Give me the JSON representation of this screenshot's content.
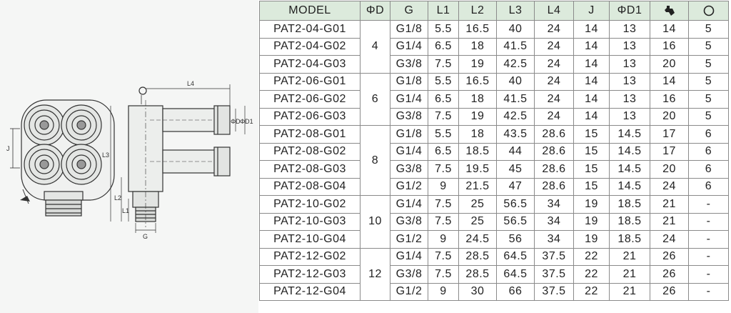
{
  "headers": {
    "model": "MODEL",
    "od": "ΦD",
    "g": "G",
    "l1": "L1",
    "l2": "L2",
    "l3": "L3",
    "l4": "L4",
    "j": "J",
    "od1": "ΦD1",
    "wrench_icon": "wrench-icon",
    "circle_icon": "circle-icon"
  },
  "groups": [
    {
      "od": "4",
      "rows": [
        {
          "model": "PAT2-04-G01",
          "g": "G1/8",
          "l1": "5.5",
          "l2": "16.5",
          "l3": "40",
          "l4": "24",
          "j": "14",
          "od1": "13",
          "wrench": "14",
          "circle": "5"
        },
        {
          "model": "PAT2-04-G02",
          "g": "G1/4",
          "l1": "6.5",
          "l2": "18",
          "l3": "41.5",
          "l4": "24",
          "j": "14",
          "od1": "13",
          "wrench": "16",
          "circle": "5"
        },
        {
          "model": "PAT2-04-G03",
          "g": "G3/8",
          "l1": "7.5",
          "l2": "19",
          "l3": "42.5",
          "l4": "24",
          "j": "14",
          "od1": "13",
          "wrench": "20",
          "circle": "5"
        }
      ]
    },
    {
      "od": "6",
      "rows": [
        {
          "model": "PAT2-06-G01",
          "g": "G1/8",
          "l1": "5.5",
          "l2": "16.5",
          "l3": "40",
          "l4": "24",
          "j": "14",
          "od1": "13",
          "wrench": "14",
          "circle": "5"
        },
        {
          "model": "PAT2-06-G02",
          "g": "G1/4",
          "l1": "6.5",
          "l2": "18",
          "l3": "41.5",
          "l4": "24",
          "j": "14",
          "od1": "13",
          "wrench": "16",
          "circle": "5"
        },
        {
          "model": "PAT2-06-G03",
          "g": "G3/8",
          "l1": "7.5",
          "l2": "19",
          "l3": "42.5",
          "l4": "24",
          "j": "14",
          "od1": "13",
          "wrench": "20",
          "circle": "5"
        }
      ]
    },
    {
      "od": "8",
      "rows": [
        {
          "model": "PAT2-08-G01",
          "g": "G1/8",
          "l1": "5.5",
          "l2": "18",
          "l3": "43.5",
          "l4": "28.6",
          "j": "15",
          "od1": "14.5",
          "wrench": "17",
          "circle": "6"
        },
        {
          "model": "PAT2-08-G02",
          "g": "G1/4",
          "l1": "6.5",
          "l2": "18.5",
          "l3": "44",
          "l4": "28.6",
          "j": "15",
          "od1": "14.5",
          "wrench": "17",
          "circle": "6"
        },
        {
          "model": "PAT2-08-G03",
          "g": "G3/8",
          "l1": "7.5",
          "l2": "19.5",
          "l3": "45",
          "l4": "28.6",
          "j": "15",
          "od1": "14.5",
          "wrench": "20",
          "circle": "6"
        },
        {
          "model": "PAT2-08-G04",
          "g": "G1/2",
          "l1": "9",
          "l2": "21.5",
          "l3": "47",
          "l4": "28.6",
          "j": "15",
          "od1": "14.5",
          "wrench": "24",
          "circle": "6"
        }
      ]
    },
    {
      "od": "10",
      "rows": [
        {
          "model": "PAT2-10-G02",
          "g": "G1/4",
          "l1": "7.5",
          "l2": "25",
          "l3": "56.5",
          "l4": "34",
          "j": "19",
          "od1": "18.5",
          "wrench": "21",
          "circle": "-"
        },
        {
          "model": "PAT2-10-G03",
          "g": "G3/8",
          "l1": "7.5",
          "l2": "25",
          "l3": "56.5",
          "l4": "34",
          "j": "19",
          "od1": "18.5",
          "wrench": "21",
          "circle": "-"
        },
        {
          "model": "PAT2-10-G04",
          "g": "G1/2",
          "l1": "9",
          "l2": "24.5",
          "l3": "56",
          "l4": "34",
          "j": "19",
          "od1": "18.5",
          "wrench": "24",
          "circle": "-"
        }
      ]
    },
    {
      "od": "12",
      "rows": [
        {
          "model": "PAT2-12-G02",
          "g": "G1/4",
          "l1": "7.5",
          "l2": "28.5",
          "l3": "64.5",
          "l4": "37.5",
          "j": "22",
          "od1": "21",
          "wrench": "26",
          "circle": "-"
        },
        {
          "model": "PAT2-12-G03",
          "g": "G3/8",
          "l1": "7.5",
          "l2": "28.5",
          "l3": "64.5",
          "l4": "37.5",
          "j": "22",
          "od1": "21",
          "wrench": "26",
          "circle": "-"
        },
        {
          "model": "PAT2-12-G04",
          "g": "G1/2",
          "l1": "9",
          "l2": "30",
          "l3": "66",
          "l4": "37.5",
          "j": "22",
          "od1": "21",
          "wrench": "26",
          "circle": "-"
        }
      ]
    }
  ],
  "drawing": {
    "label_j": "J",
    "label_l3": "L3",
    "label_l2": "L2",
    "label_l1": "L1",
    "label_l4": "L4",
    "label_g": "G",
    "label_od": "ΦD",
    "label_od1": "ΦD1"
  }
}
